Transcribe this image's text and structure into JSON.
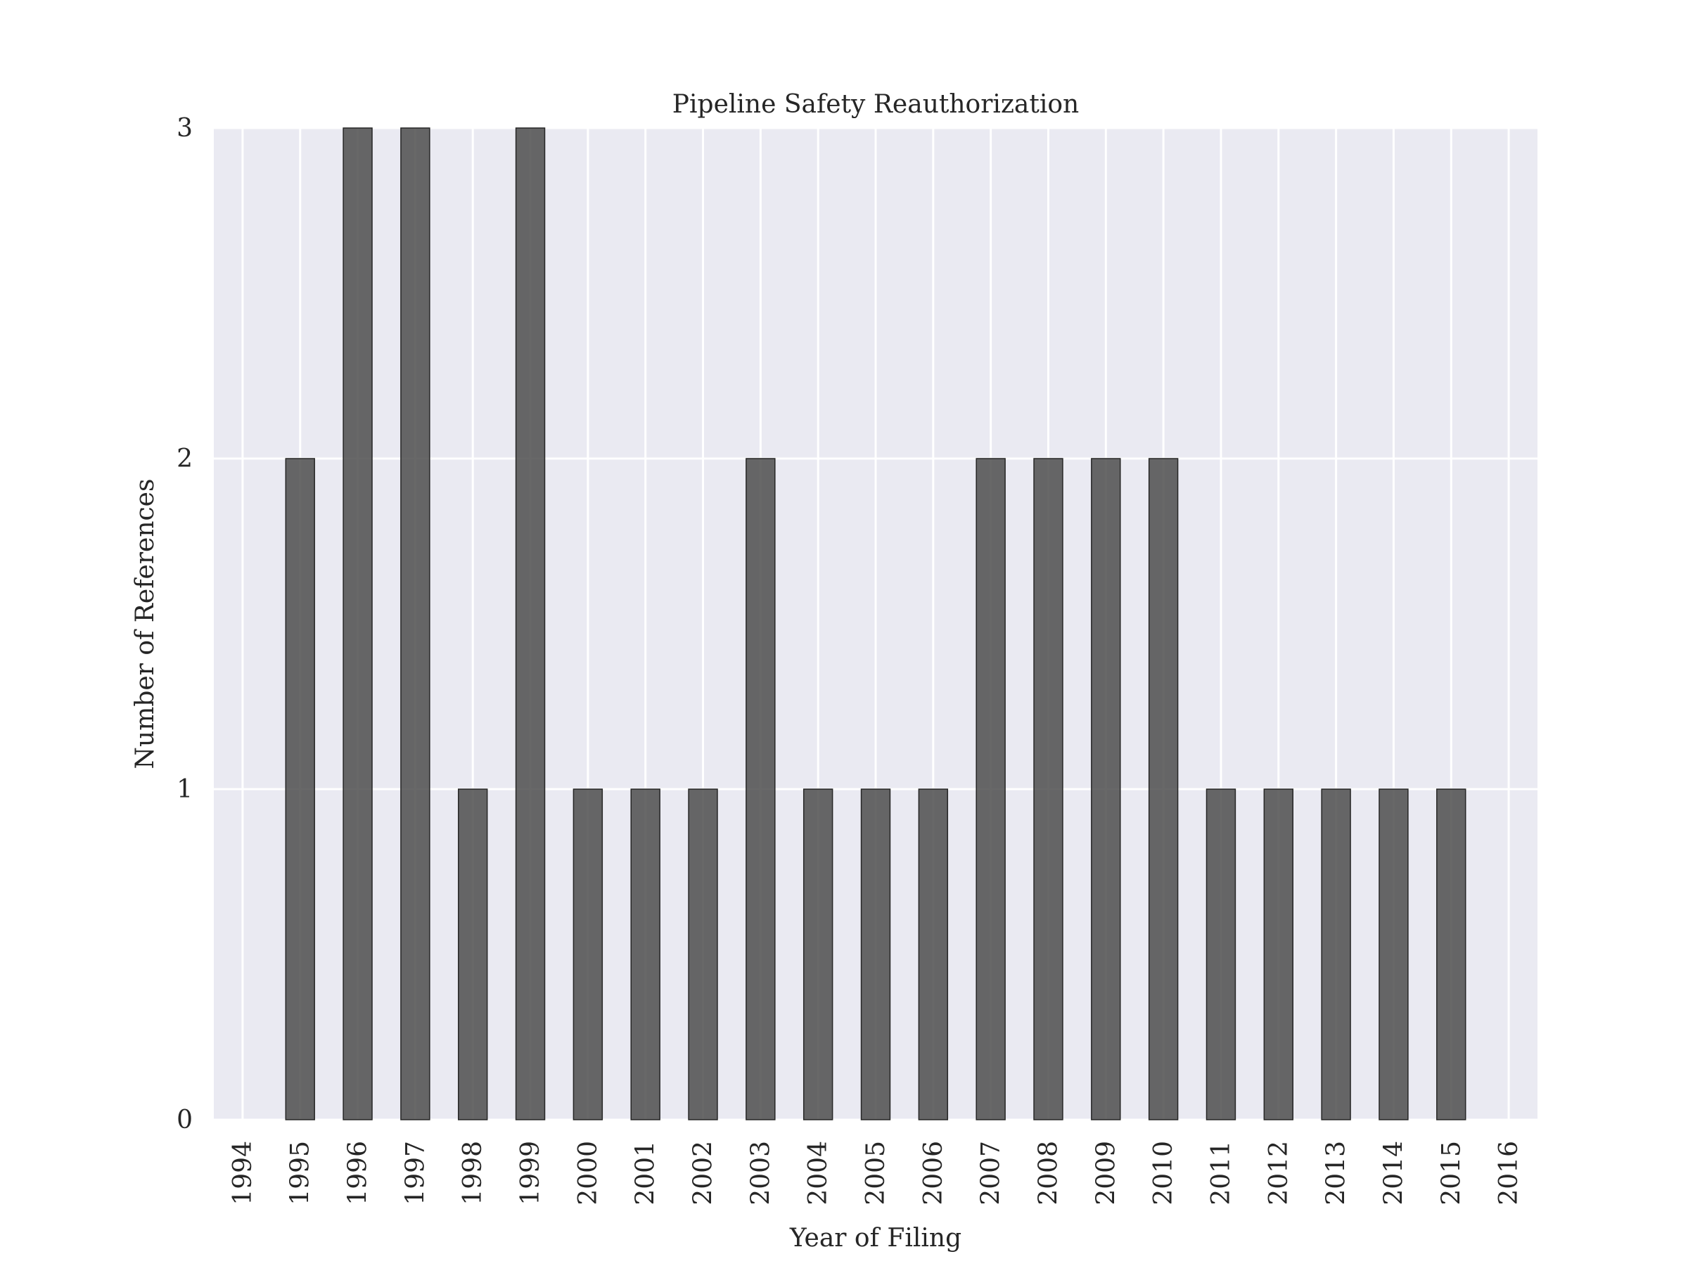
{
  "chart_data": {
    "type": "bar",
    "title": "Pipeline Safety Reauthorization",
    "xlabel": "Year of Filing",
    "ylabel": "Number of References",
    "categories": [
      "1994",
      "1995",
      "1996",
      "1997",
      "1998",
      "1999",
      "2000",
      "2001",
      "2002",
      "2003",
      "2004",
      "2005",
      "2006",
      "2007",
      "2008",
      "2009",
      "2010",
      "2011",
      "2012",
      "2013",
      "2014",
      "2015",
      "2016"
    ],
    "values": [
      0,
      2,
      3,
      3,
      1,
      3,
      1,
      1,
      1,
      2,
      1,
      1,
      1,
      2,
      2,
      2,
      2,
      1,
      1,
      1,
      1,
      1,
      0
    ],
    "ylim": [
      0,
      3
    ],
    "yticks": [
      0,
      1,
      2,
      3
    ],
    "grid": true,
    "legend": "none",
    "colors": {
      "bar": "#4d4d4d",
      "background": "#eaeaf2",
      "grid": "#ffffff"
    }
  }
}
